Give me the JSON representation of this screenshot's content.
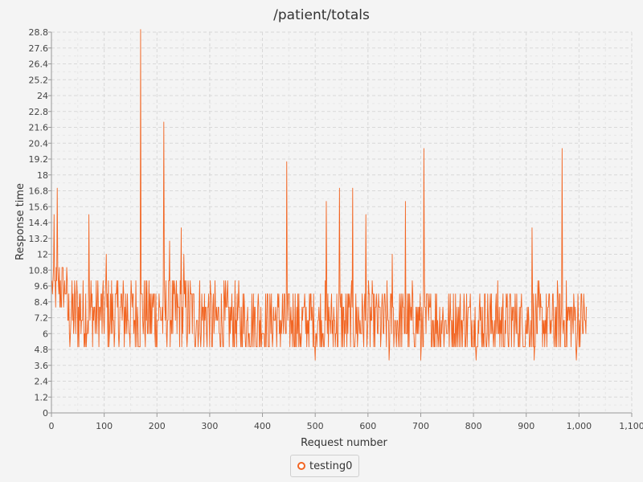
{
  "chart_data": {
    "type": "line",
    "title": "/patient/totals",
    "xlabel": "Request number",
    "ylabel": "Response time",
    "xlim": [
      0,
      1100
    ],
    "ylim": [
      0,
      28.8
    ],
    "x_ticks": [
      "0",
      "100",
      "200",
      "300",
      "400",
      "500",
      "600",
      "700",
      "800",
      "900",
      "1,000",
      "1,100"
    ],
    "y_ticks": [
      "0",
      "1.2",
      "2.4",
      "3.6",
      "4.8",
      "6",
      "7.2",
      "8.4",
      "9.6",
      "10.8",
      "12",
      "13.2",
      "14.4",
      "15.6",
      "16.8",
      "18",
      "19.2",
      "20.4",
      "21.6",
      "22.8",
      "24",
      "25.2",
      "26.4",
      "27.6",
      "28.8"
    ],
    "grid": true,
    "legend_position": "bottom-center",
    "series": [
      {
        "name": "testing0",
        "color": "#f26522",
        "x_start": 1,
        "x_end": 1015,
        "peaks": [
          {
            "x": 5,
            "y": 15
          },
          {
            "x": 11,
            "y": 17
          },
          {
            "x": 71,
            "y": 15
          },
          {
            "x": 104,
            "y": 12
          },
          {
            "x": 169,
            "y": 29
          },
          {
            "x": 213,
            "y": 22
          },
          {
            "x": 224,
            "y": 13
          },
          {
            "x": 246,
            "y": 14
          },
          {
            "x": 251,
            "y": 12
          },
          {
            "x": 446,
            "y": 19
          },
          {
            "x": 521,
            "y": 16
          },
          {
            "x": 546,
            "y": 17
          },
          {
            "x": 571,
            "y": 17
          },
          {
            "x": 596,
            "y": 15
          },
          {
            "x": 646,
            "y": 12
          },
          {
            "x": 671,
            "y": 16
          },
          {
            "x": 706,
            "y": 20
          },
          {
            "x": 911,
            "y": 14
          },
          {
            "x": 968,
            "y": 20
          }
        ],
        "baseline_levels": [
          4,
          5,
          6,
          7,
          8,
          9,
          10,
          11
        ],
        "dips": [
          {
            "x": 500,
            "y": 4
          },
          {
            "x": 640,
            "y": 4
          },
          {
            "x": 700,
            "y": 4
          },
          {
            "x": 805,
            "y": 4
          },
          {
            "x": 915,
            "y": 4
          },
          {
            "x": 995,
            "y": 4
          }
        ]
      }
    ]
  }
}
